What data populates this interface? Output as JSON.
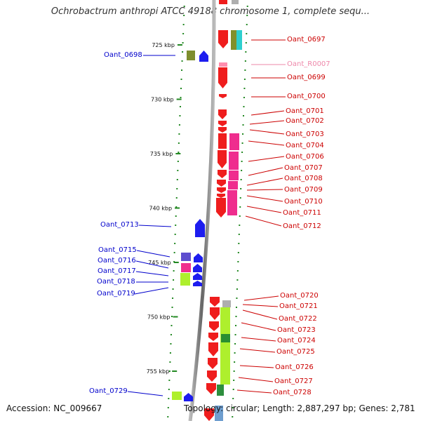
{
  "title": "Ochrobactrum anthropi ATCC 49188 chromosome 1, complete sequ...",
  "footer": {
    "accession": "Accession: NC_009667",
    "topology": "Topology: circular; Length: 2,887,297 bp; Genes: 2,781"
  },
  "colors": {
    "forward_label": "#cc0000",
    "reverse_label": "#0000cc",
    "rrna_label": "#ee88aa",
    "forward_gene": "#ee1111",
    "reverse_gene": "#1111ee",
    "backbone": "#888888",
    "tick": "#228822"
  },
  "ruler": {
    "unit": "kbp",
    "ticks": [
      {
        "kbp": 725,
        "label": "725 kbp"
      },
      {
        "kbp": 730,
        "label": "730 kbp"
      },
      {
        "kbp": 735,
        "label": "735 kbp"
      },
      {
        "kbp": 740,
        "label": "740 kbp"
      },
      {
        "kbp": 745,
        "label": "745 kbp"
      },
      {
        "kbp": 750,
        "label": "750 kbp"
      },
      {
        "kbp": 755,
        "label": "755 kbp"
      }
    ]
  },
  "genes": [
    {
      "id": "Oant_0697",
      "strand": "+",
      "color": "#cc0000"
    },
    {
      "id": "Oant_R0007",
      "strand": "+",
      "color": "#ee88aa"
    },
    {
      "id": "Oant_0698",
      "strand": "-",
      "color": "#0000cc"
    },
    {
      "id": "Oant_0699",
      "strand": "+",
      "color": "#cc0000"
    },
    {
      "id": "Oant_0700",
      "strand": "+",
      "color": "#cc0000"
    },
    {
      "id": "Oant_0701",
      "strand": "+",
      "color": "#cc0000"
    },
    {
      "id": "Oant_0702",
      "strand": "+",
      "color": "#cc0000"
    },
    {
      "id": "Oant_0703",
      "strand": "+",
      "color": "#cc0000"
    },
    {
      "id": "Oant_0704",
      "strand": "+",
      "color": "#cc0000"
    },
    {
      "id": "Oant_0706",
      "strand": "+",
      "color": "#cc0000"
    },
    {
      "id": "Oant_0707",
      "strand": "+",
      "color": "#cc0000"
    },
    {
      "id": "Oant_0708",
      "strand": "+",
      "color": "#cc0000"
    },
    {
      "id": "Oant_0709",
      "strand": "+",
      "color": "#cc0000"
    },
    {
      "id": "Oant_0710",
      "strand": "+",
      "color": "#cc0000"
    },
    {
      "id": "Oant_0711",
      "strand": "+",
      "color": "#cc0000"
    },
    {
      "id": "Oant_0712",
      "strand": "+",
      "color": "#cc0000"
    },
    {
      "id": "Oant_0713",
      "strand": "-",
      "color": "#0000cc"
    },
    {
      "id": "Oant_0715",
      "strand": "-",
      "color": "#0000cc"
    },
    {
      "id": "Oant_0716",
      "strand": "-",
      "color": "#0000cc"
    },
    {
      "id": "Oant_0717",
      "strand": "-",
      "color": "#0000cc"
    },
    {
      "id": "Oant_0718",
      "strand": "-",
      "color": "#0000cc"
    },
    {
      "id": "Oant_0719",
      "strand": "-",
      "color": "#0000cc"
    },
    {
      "id": "Oant_0720",
      "strand": "+",
      "color": "#cc0000"
    },
    {
      "id": "Oant_0721",
      "strand": "+",
      "color": "#cc0000"
    },
    {
      "id": "Oant_0722",
      "strand": "+",
      "color": "#cc0000"
    },
    {
      "id": "Oant_0723",
      "strand": "+",
      "color": "#cc0000"
    },
    {
      "id": "Oant_0724",
      "strand": "+",
      "color": "#cc0000"
    },
    {
      "id": "Oant_0725",
      "strand": "+",
      "color": "#cc0000"
    },
    {
      "id": "Oant_0726",
      "strand": "+",
      "color": "#cc0000"
    },
    {
      "id": "Oant_0727",
      "strand": "+",
      "color": "#cc0000"
    },
    {
      "id": "Oant_0728",
      "strand": "+",
      "color": "#cc0000"
    },
    {
      "id": "Oant_0729",
      "strand": "-",
      "color": "#0000cc"
    }
  ]
}
